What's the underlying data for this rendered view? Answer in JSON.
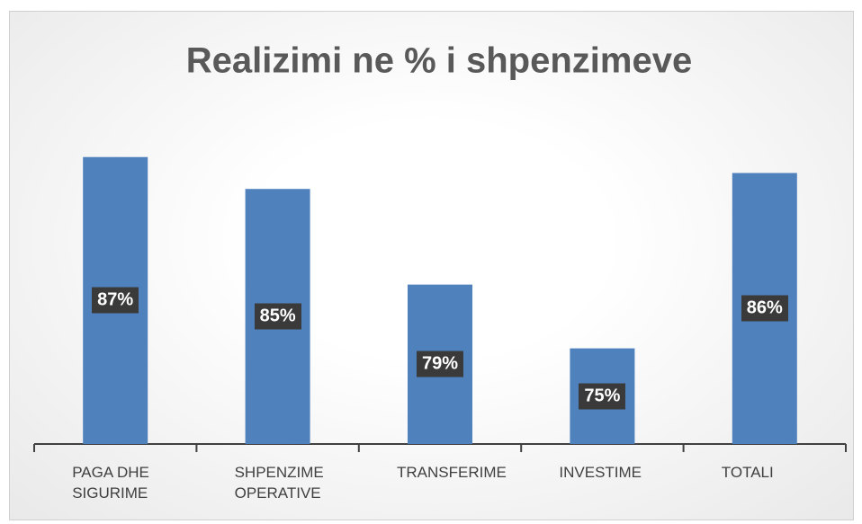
{
  "chart_data": {
    "type": "bar",
    "title": "Realizimi ne % i shpenzimeve",
    "categories": [
      "PAGA DHE SIGURIME",
      "SHPENZIME OPERATIVE",
      "TRANSFERIME",
      "INVESTIME",
      "TOTALI"
    ],
    "values": [
      87,
      85,
      79,
      75,
      86
    ],
    "value_labels": [
      "87%",
      "85%",
      "79%",
      "75%",
      "86%"
    ],
    "color": "#4f81bd",
    "ylim": [
      69,
      88
    ]
  }
}
